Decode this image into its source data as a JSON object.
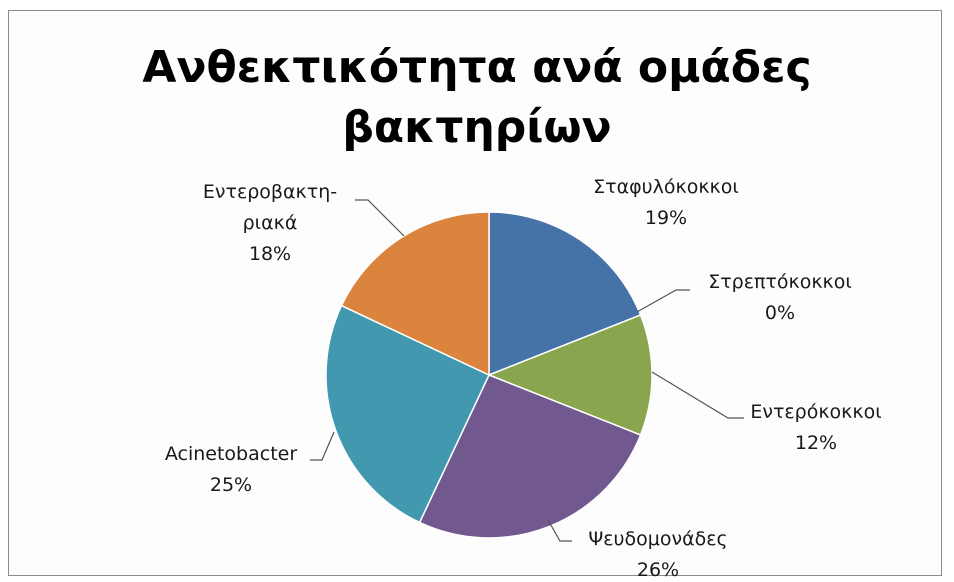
{
  "chart_data": {
    "type": "pie",
    "title_lines": [
      "Ανθεκτικότητα ανά ομάδες",
      "βακτηρίων"
    ],
    "slices": [
      {
        "name": "Σταφυλόκοκκοι",
        "label_lines": [
          "Σταφυλόκοκκοι",
          "19%"
        ],
        "value": 19,
        "color": "#4572A7"
      },
      {
        "name": "Στρεπτόκοκκοι",
        "label_lines": [
          "Στρεπτόκοκκοι",
          "0%"
        ],
        "value": 0,
        "color": "#AA4643"
      },
      {
        "name": "Εντερόκοκκοι",
        "label_lines": [
          "Εντερόκοκκοι",
          "12%"
        ],
        "value": 12,
        "color": "#89A54E"
      },
      {
        "name": "Ψευδομονάδες",
        "label_lines": [
          "Ψευδομονάδες",
          "26%"
        ],
        "value": 26,
        "color": "#71588F"
      },
      {
        "name": "Acinetobacter",
        "label_lines": [
          "Acinetobacter",
          "25%"
        ],
        "value": 25,
        "color": "#4198AF"
      },
      {
        "name": "Εντεροβακτηριακά",
        "label_lines": [
          "Εντεροβακτη-",
          "ριακά",
          "18%"
        ],
        "value": 18,
        "color": "#DB843D"
      }
    ],
    "legend": "none"
  }
}
